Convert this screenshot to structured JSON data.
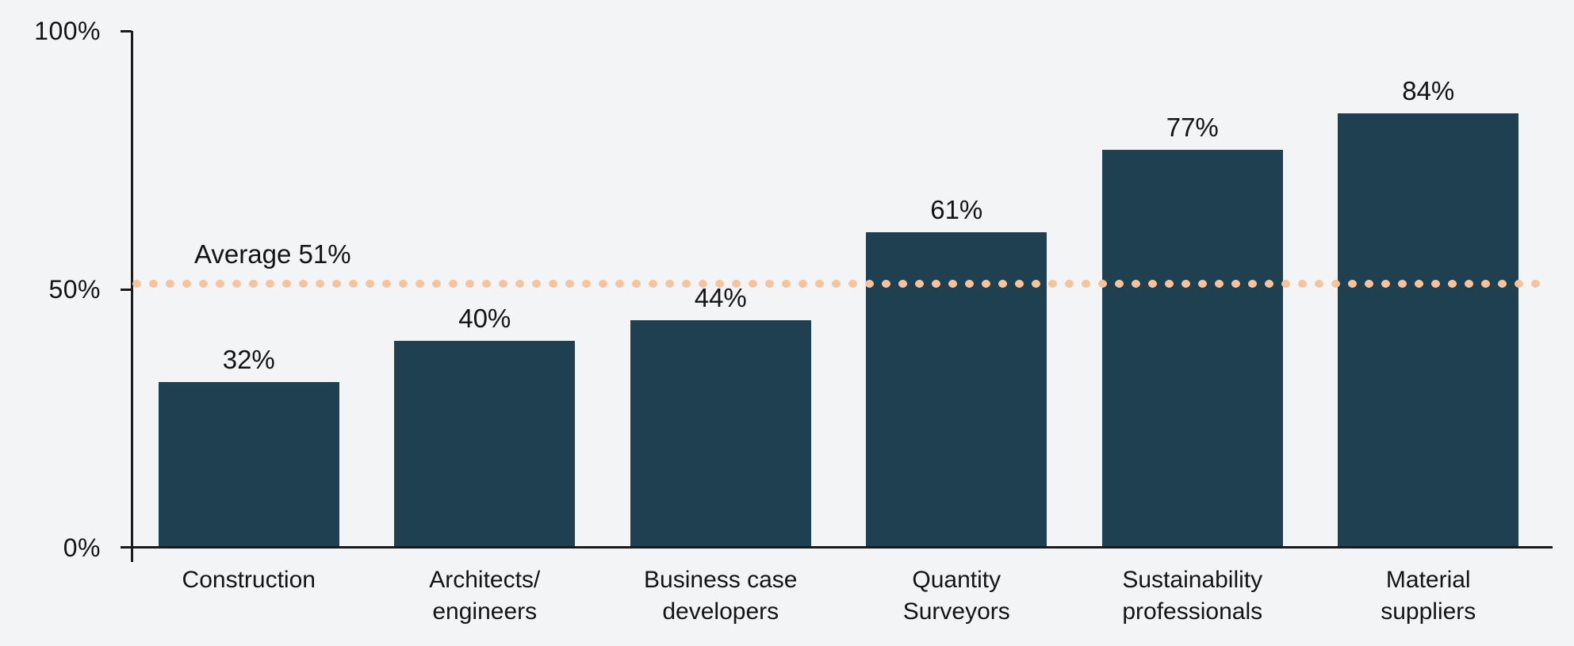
{
  "chart_data": {
    "type": "bar",
    "title": "",
    "unit": "%",
    "ylim": [
      0,
      100
    ],
    "grid": false,
    "yticks": [
      {
        "label": "100%",
        "value": 100
      },
      {
        "label": "50%",
        "value": 50
      },
      {
        "label": "0%",
        "value": 0
      }
    ],
    "average_line": {
      "label": "Average 51%",
      "value": 51,
      "style": "dotted"
    },
    "categories": [
      "Construction",
      "Architects/engineers",
      "Business case developers",
      "Quantity Surveyors",
      "Sustainability professionals",
      "Material suppliers"
    ],
    "bars": [
      {
        "label_lines": [
          "Construction"
        ],
        "value": 32,
        "display": "32%"
      },
      {
        "label_lines": [
          "Architects/",
          "engineers"
        ],
        "value": 40,
        "display": "40%"
      },
      {
        "label_lines": [
          "Business case",
          "developers"
        ],
        "value": 44,
        "display": "44%"
      },
      {
        "label_lines": [
          "Quantity",
          "Surveyors"
        ],
        "value": 61,
        "display": "61%"
      },
      {
        "label_lines": [
          "Sustainability",
          "professionals"
        ],
        "value": 77,
        "display": "77%"
      },
      {
        "label_lines": [
          "Material",
          "suppliers"
        ],
        "value": 84,
        "display": "84%"
      }
    ],
    "colors": {
      "bg": "#f3f4f6",
      "bar": "#1f4051",
      "line": "#f5c49c",
      "axis": "#1a1a1a",
      "text": "#141414"
    }
  }
}
